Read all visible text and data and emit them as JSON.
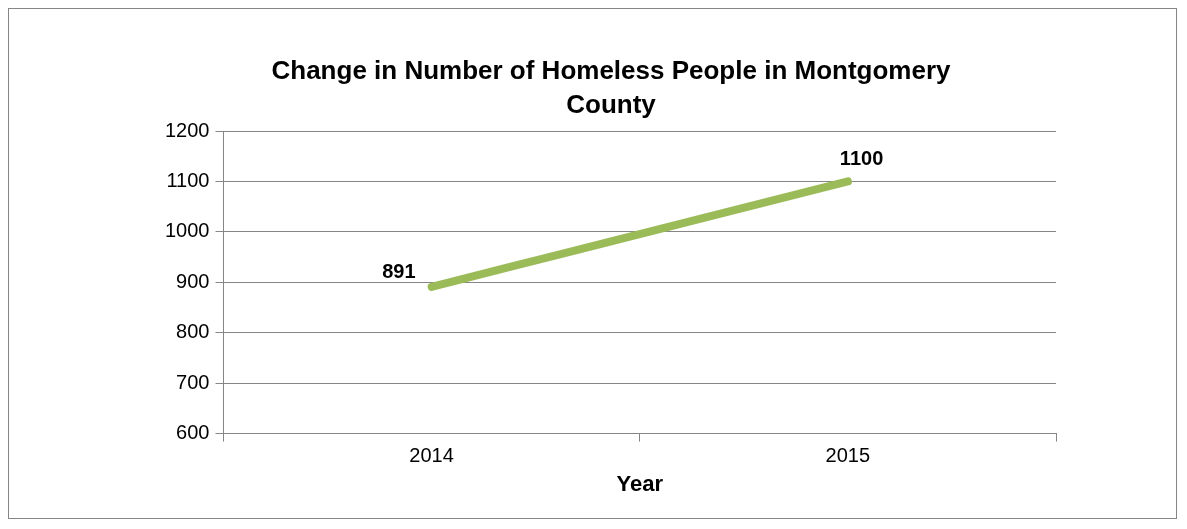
{
  "chart_data": {
    "type": "line",
    "title": "Change in Number of Homeless People in Montgomery County",
    "xlabel": "Year",
    "categories": [
      "2014",
      "2015"
    ],
    "series": [
      {
        "color": "#9bbb59",
        "values": [
          891,
          1100
        ]
      }
    ],
    "ylim": [
      600,
      1200
    ],
    "yticks": [
      600,
      700,
      800,
      900,
      1000,
      1100,
      1200
    ],
    "grid": "y",
    "legend": false,
    "marker": "none",
    "line_style": "solid",
    "data_labels": true
  }
}
